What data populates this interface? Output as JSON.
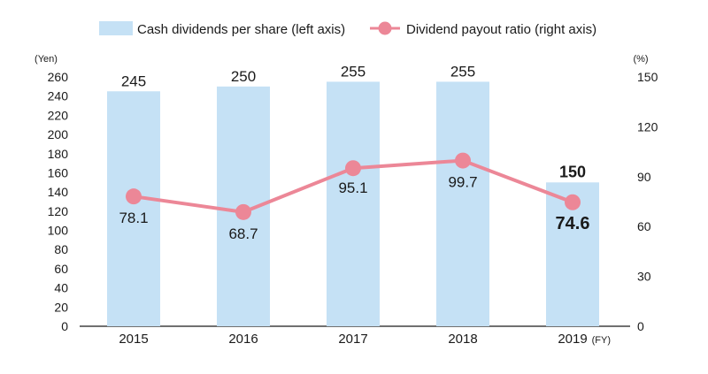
{
  "chart_data": {
    "type": "bar+line",
    "categories": [
      "2015",
      "2016",
      "2017",
      "2018",
      "2019"
    ],
    "x_unit": "(FY)",
    "series": [
      {
        "name": "Cash dividends per share (left axis)",
        "type": "bar",
        "axis": "left",
        "values": [
          245,
          250,
          255,
          255,
          150
        ],
        "labels": [
          "245",
          "250",
          "255",
          "255",
          "150"
        ],
        "color": "#c5e1f5"
      },
      {
        "name": "Dividend payout ratio (right axis)",
        "type": "line",
        "axis": "right",
        "values": [
          78.1,
          68.7,
          95.1,
          99.7,
          74.6
        ],
        "labels": [
          "78.1",
          "68.7",
          "95.1",
          "99.7",
          "74.6"
        ],
        "color": "#ec8797"
      }
    ],
    "highlight_category": "2019",
    "left_axis": {
      "unit": "(Yen)",
      "range": [
        0,
        260
      ],
      "ticks": [
        "0",
        "20",
        "40",
        "60",
        "80",
        "100",
        "120",
        "140",
        "160",
        "180",
        "200",
        "220",
        "240",
        "260"
      ]
    },
    "right_axis": {
      "unit": "(%)",
      "range": [
        0,
        150
      ],
      "ticks": [
        "0",
        "30",
        "60",
        "90",
        "120",
        "150"
      ]
    },
    "grid": false,
    "legend_position": "top-center"
  }
}
